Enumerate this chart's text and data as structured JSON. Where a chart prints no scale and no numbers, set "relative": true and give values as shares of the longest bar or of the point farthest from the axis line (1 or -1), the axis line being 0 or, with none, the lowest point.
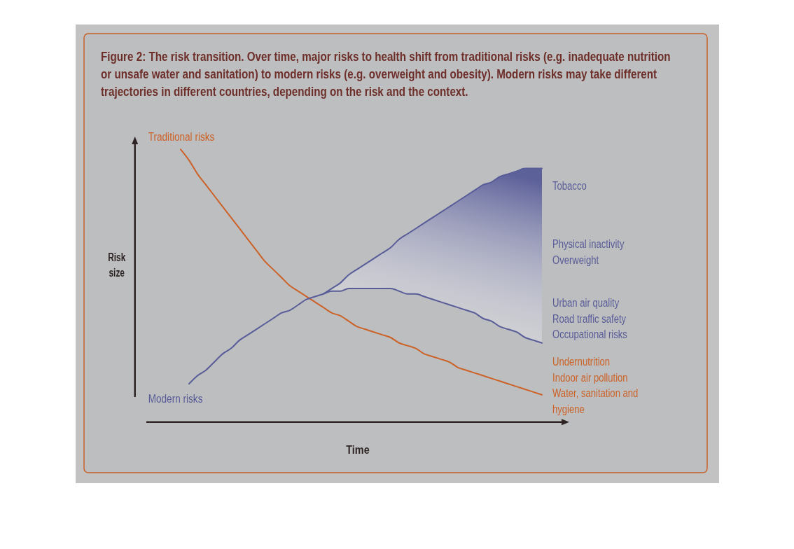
{
  "chart_data": {
    "type": "line",
    "relative": true,
    "title": "Figure 2: The risk transition. Over time, major risks to health shift from traditional risks (e.g. inadequate nutrition or unsafe water and sanitation) to modern risks (e.g. overweight and obesity). Modern risks may take different trajectories in different countries, depending on the risk and the context.",
    "xlabel": "Time",
    "ylabel": "Risk size",
    "categories": [
      null,
      null,
      null,
      null,
      null,
      null,
      null,
      null,
      null,
      null,
      null,
      null,
      null,
      null,
      null,
      null,
      null,
      null,
      null,
      null,
      null,
      null,
      null,
      null,
      null,
      null,
      null,
      null,
      null,
      null,
      null,
      null,
      null,
      null,
      null,
      null,
      null,
      null,
      null,
      null,
      null,
      null,
      null,
      null
    ],
    "series": [
      {
        "name": "Traditional risks",
        "color": "#cc6228",
        "values": [
          1.0,
          0.96,
          0.91,
          0.87,
          0.83,
          0.79,
          0.75,
          0.71,
          0.67,
          0.63,
          0.59,
          0.56,
          0.53,
          0.5,
          0.48,
          0.46,
          0.44,
          0.42,
          0.4,
          0.39,
          0.37,
          0.35,
          0.34,
          0.33,
          0.32,
          0.31,
          0.29,
          0.28,
          0.27,
          0.25,
          0.24,
          0.23,
          0.22,
          0.2,
          0.19,
          0.18,
          0.17,
          0.16,
          0.15,
          0.14,
          0.13,
          0.12,
          0.11,
          0.1
        ]
      },
      {
        "name": "Modern risks",
        "color": "#585c98",
        "values": [
          null,
          0.14,
          0.17,
          0.19,
          0.22,
          0.25,
          0.27,
          0.3,
          0.32,
          0.34,
          0.36,
          0.38,
          0.4,
          0.41,
          0.43,
          0.45,
          0.46,
          0.47,
          0.48,
          0.48,
          0.49,
          0.49,
          0.49,
          0.49,
          0.49,
          0.49,
          0.48,
          0.47,
          0.47,
          0.46,
          0.45,
          0.44,
          0.43,
          0.42,
          0.41,
          0.4,
          0.38,
          0.37,
          0.35,
          0.34,
          0.33,
          0.31,
          0.3,
          0.29
        ]
      },
      {
        "color": "#585c98",
        "values": [
          null,
          null,
          null,
          null,
          null,
          null,
          null,
          null,
          null,
          null,
          null,
          null,
          null,
          null,
          null,
          null,
          null,
          0.47,
          0.49,
          0.51,
          0.54,
          0.56,
          0.58,
          0.6,
          0.62,
          0.64,
          0.67,
          0.69,
          0.71,
          0.73,
          0.75,
          0.77,
          0.79,
          0.81,
          0.83,
          0.85,
          0.87,
          0.88,
          0.9,
          0.91,
          0.92,
          0.93,
          0.93,
          0.93
        ],
        "lower": [
          null,
          null,
          null,
          null,
          null,
          null,
          null,
          null,
          null,
          null,
          null,
          null,
          null,
          null,
          null,
          null,
          null,
          0.47,
          0.48,
          0.48,
          0.49,
          0.49,
          0.49,
          0.49,
          0.49,
          0.49,
          0.48,
          0.47,
          0.47,
          0.46,
          0.45,
          0.44,
          0.43,
          0.42,
          0.41,
          0.4,
          0.38,
          0.37,
          0.35,
          0.34,
          0.33,
          0.31,
          0.3,
          0.29
        ],
        "upper": [
          null,
          null,
          null,
          null,
          null,
          null,
          null,
          null,
          null,
          null,
          null,
          null,
          null,
          null,
          null,
          null,
          null,
          0.47,
          0.49,
          0.51,
          0.54,
          0.56,
          0.58,
          0.6,
          0.62,
          0.64,
          0.67,
          0.69,
          0.71,
          0.73,
          0.75,
          0.77,
          0.79,
          0.81,
          0.83,
          0.85,
          0.87,
          0.88,
          0.9,
          0.91,
          0.92,
          0.93,
          0.93,
          0.93
        ]
      }
    ],
    "annotations": [
      "Tobacco",
      "Physical inactivity\nOverweight",
      "Urban air quality\nRoad traffic safety\nOccupational risks",
      "Undernutrition\nIndoor air pollution\nWater, sanitation and hygiene"
    ]
  }
}
